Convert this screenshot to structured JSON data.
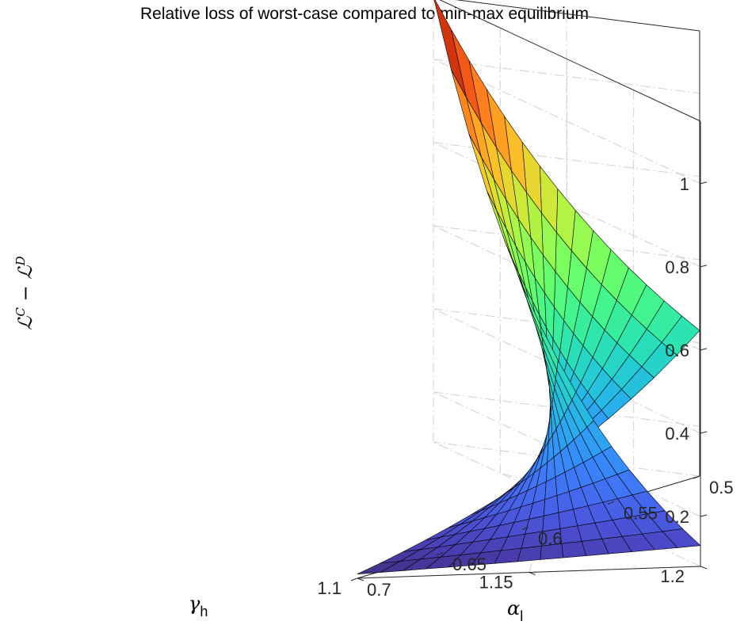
{
  "chart_data": {
    "type": "surface",
    "title": "Relative loss of worst-case compared to min-max equilibrium",
    "x_axis": {
      "label": "α",
      "label_sub": "l",
      "ticks": [
        "0.5",
        "0.55",
        "0.6",
        "0.65",
        "0.7"
      ],
      "range": [
        0.5,
        0.7
      ]
    },
    "y_axis": {
      "label": "γ",
      "label_sub": "h",
      "ticks": [
        "1.1",
        "1.15",
        "1.2"
      ],
      "range": [
        1.1,
        1.2
      ]
    },
    "z_axis": {
      "label": "ℒ^C − ℒ^D",
      "ticks": [
        "0.2",
        "0.4",
        "0.6",
        "0.8",
        "1"
      ],
      "range": [
        0.08,
        1.15
      ]
    },
    "grid": true,
    "colormap": "turbo",
    "mesh": {
      "alpha_steps": 15,
      "gamma_steps": 15
    },
    "corner_values": [
      {
        "alpha": 0.5,
        "gamma": 1.1,
        "z": 0.43
      },
      {
        "alpha": 0.5,
        "gamma": 1.2,
        "z": 1.15
      },
      {
        "alpha": 0.7,
        "gamma": 1.2,
        "z": 0.13
      },
      {
        "alpha": 0.7,
        "gamma": 1.1,
        "z": 0.09
      }
    ]
  }
}
